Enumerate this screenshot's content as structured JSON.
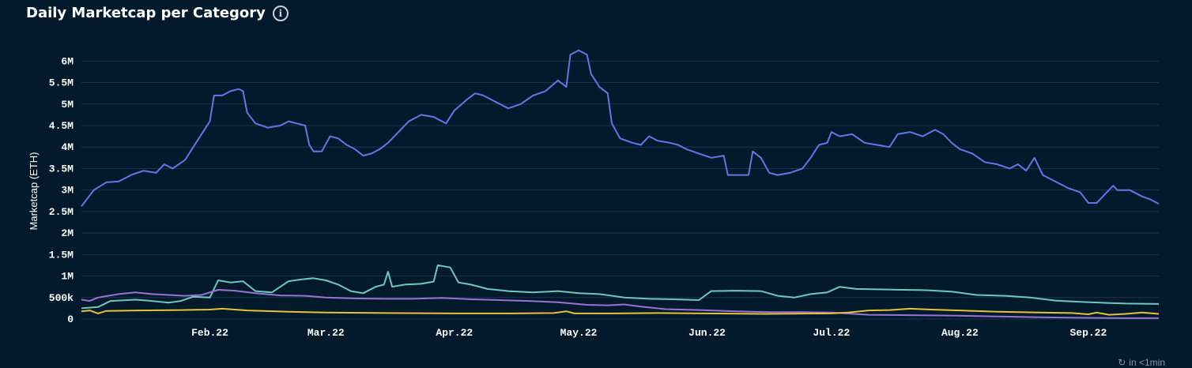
{
  "header": {
    "title": "Daily Marketcap per Category",
    "info_icon": "info-icon"
  },
  "footer": {
    "refresh_icon": "refresh-icon",
    "refresh_text": "in <1min"
  },
  "colors": {
    "background": "#021a2c",
    "grid": "#1b3450",
    "axis_text": "#ffffff",
    "series": [
      "#6476e6",
      "#6fc8bf",
      "#9a72d4",
      "#e6c13a"
    ]
  },
  "chart_data": {
    "type": "line",
    "title": "Daily Marketcap per Category",
    "ylabel": "Marketcap (ETH)",
    "xlabel": "",
    "xlim": [
      "2022-01-01",
      "2022-09-18"
    ],
    "ylim": [
      0,
      6300000
    ],
    "yticks": [
      0,
      500000,
      1000000,
      1500000,
      2000000,
      2500000,
      3000000,
      3500000,
      4000000,
      4500000,
      5000000,
      5500000,
      6000000
    ],
    "ytick_labels": [
      "0",
      "500k",
      "1M",
      "1.5M",
      "2M",
      "2.5M",
      "3M",
      "3.5M",
      "4M",
      "4.5M",
      "5M",
      "5.5M",
      "6M"
    ],
    "xticks": [
      "2022-02-01",
      "2022-03-01",
      "2022-04-01",
      "2022-05-01",
      "2022-06-01",
      "2022-07-01",
      "2022-08-01",
      "2022-09-01"
    ],
    "xtick_labels": [
      "Feb.22",
      "Mar.22",
      "Apr.22",
      "May.22",
      "Jun.22",
      "Jul.22",
      "Aug.22",
      "Sep.22"
    ],
    "grid": true,
    "legend": "none",
    "series": [
      {
        "color": "#6476e6",
        "points": [
          [
            "2022-01-01",
            2620000
          ],
          [
            "2022-01-04",
            3000000
          ],
          [
            "2022-01-07",
            3180000
          ],
          [
            "2022-01-10",
            3200000
          ],
          [
            "2022-01-13",
            3350000
          ],
          [
            "2022-01-16",
            3450000
          ],
          [
            "2022-01-19",
            3400000
          ],
          [
            "2022-01-21",
            3600000
          ],
          [
            "2022-01-23",
            3500000
          ],
          [
            "2022-01-26",
            3700000
          ],
          [
            "2022-01-28",
            4000000
          ],
          [
            "2022-01-30",
            4300000
          ],
          [
            "2022-02-01",
            4600000
          ],
          [
            "2022-02-02",
            5200000
          ],
          [
            "2022-02-04",
            5200000
          ],
          [
            "2022-02-06",
            5300000
          ],
          [
            "2022-02-08",
            5350000
          ],
          [
            "2022-02-09",
            5300000
          ],
          [
            "2022-02-10",
            4800000
          ],
          [
            "2022-02-12",
            4550000
          ],
          [
            "2022-02-15",
            4450000
          ],
          [
            "2022-02-18",
            4500000
          ],
          [
            "2022-02-20",
            4600000
          ],
          [
            "2022-02-22",
            4550000
          ],
          [
            "2022-02-24",
            4500000
          ],
          [
            "2022-02-25",
            4050000
          ],
          [
            "2022-02-26",
            3900000
          ],
          [
            "2022-02-28",
            3900000
          ],
          [
            "2022-03-02",
            4250000
          ],
          [
            "2022-03-04",
            4200000
          ],
          [
            "2022-03-06",
            4050000
          ],
          [
            "2022-03-08",
            3950000
          ],
          [
            "2022-03-10",
            3800000
          ],
          [
            "2022-03-12",
            3850000
          ],
          [
            "2022-03-14",
            3950000
          ],
          [
            "2022-03-16",
            4100000
          ],
          [
            "2022-03-18",
            4300000
          ],
          [
            "2022-03-21",
            4600000
          ],
          [
            "2022-03-24",
            4750000
          ],
          [
            "2022-03-27",
            4700000
          ],
          [
            "2022-03-30",
            4550000
          ],
          [
            "2022-04-01",
            4850000
          ],
          [
            "2022-04-04",
            5100000
          ],
          [
            "2022-04-06",
            5250000
          ],
          [
            "2022-04-08",
            5200000
          ],
          [
            "2022-04-11",
            5050000
          ],
          [
            "2022-04-14",
            4900000
          ],
          [
            "2022-04-17",
            5000000
          ],
          [
            "2022-04-20",
            5200000
          ],
          [
            "2022-04-23",
            5300000
          ],
          [
            "2022-04-26",
            5550000
          ],
          [
            "2022-04-28",
            5400000
          ],
          [
            "2022-04-29",
            6150000
          ],
          [
            "2022-05-01",
            6250000
          ],
          [
            "2022-05-03",
            6150000
          ],
          [
            "2022-05-04",
            5700000
          ],
          [
            "2022-05-06",
            5400000
          ],
          [
            "2022-05-08",
            5250000
          ],
          [
            "2022-05-09",
            4550000
          ],
          [
            "2022-05-11",
            4200000
          ],
          [
            "2022-05-14",
            4100000
          ],
          [
            "2022-05-16",
            4050000
          ],
          [
            "2022-05-18",
            4250000
          ],
          [
            "2022-05-20",
            4150000
          ],
          [
            "2022-05-23",
            4100000
          ],
          [
            "2022-05-25",
            4050000
          ],
          [
            "2022-05-27",
            3950000
          ],
          [
            "2022-05-30",
            3850000
          ],
          [
            "2022-06-02",
            3750000
          ],
          [
            "2022-06-05",
            3800000
          ],
          [
            "2022-06-06",
            3350000
          ],
          [
            "2022-06-09",
            3350000
          ],
          [
            "2022-06-11",
            3350000
          ],
          [
            "2022-06-12",
            3900000
          ],
          [
            "2022-06-14",
            3750000
          ],
          [
            "2022-06-16",
            3400000
          ],
          [
            "2022-06-18",
            3350000
          ],
          [
            "2022-06-21",
            3400000
          ],
          [
            "2022-06-24",
            3500000
          ],
          [
            "2022-06-26",
            3750000
          ],
          [
            "2022-06-28",
            4050000
          ],
          [
            "2022-06-30",
            4100000
          ],
          [
            "2022-07-01",
            4350000
          ],
          [
            "2022-07-03",
            4250000
          ],
          [
            "2022-07-06",
            4300000
          ],
          [
            "2022-07-09",
            4100000
          ],
          [
            "2022-07-12",
            4050000
          ],
          [
            "2022-07-15",
            4000000
          ],
          [
            "2022-07-17",
            4300000
          ],
          [
            "2022-07-20",
            4350000
          ],
          [
            "2022-07-23",
            4250000
          ],
          [
            "2022-07-26",
            4400000
          ],
          [
            "2022-07-28",
            4300000
          ],
          [
            "2022-07-30",
            4100000
          ],
          [
            "2022-08-01",
            3950000
          ],
          [
            "2022-08-04",
            3850000
          ],
          [
            "2022-08-07",
            3650000
          ],
          [
            "2022-08-10",
            3600000
          ],
          [
            "2022-08-13",
            3500000
          ],
          [
            "2022-08-15",
            3600000
          ],
          [
            "2022-08-17",
            3450000
          ],
          [
            "2022-08-19",
            3750000
          ],
          [
            "2022-08-21",
            3350000
          ],
          [
            "2022-08-24",
            3200000
          ],
          [
            "2022-08-27",
            3050000
          ],
          [
            "2022-08-30",
            2950000
          ],
          [
            "2022-09-01",
            2700000
          ],
          [
            "2022-09-03",
            2700000
          ],
          [
            "2022-09-05",
            2900000
          ],
          [
            "2022-09-07",
            3100000
          ],
          [
            "2022-09-08",
            3000000
          ],
          [
            "2022-09-11",
            3000000
          ],
          [
            "2022-09-14",
            2850000
          ],
          [
            "2022-09-16",
            2780000
          ],
          [
            "2022-09-18",
            2680000
          ]
        ]
      },
      {
        "color": "#6fc8bf",
        "points": [
          [
            "2022-01-01",
            250000
          ],
          [
            "2022-01-05",
            280000
          ],
          [
            "2022-01-08",
            420000
          ],
          [
            "2022-01-14",
            450000
          ],
          [
            "2022-01-17",
            430000
          ],
          [
            "2022-01-22",
            380000
          ],
          [
            "2022-01-25",
            420000
          ],
          [
            "2022-01-28",
            520000
          ],
          [
            "2022-02-01",
            500000
          ],
          [
            "2022-02-03",
            900000
          ],
          [
            "2022-02-06",
            850000
          ],
          [
            "2022-02-09",
            880000
          ],
          [
            "2022-02-12",
            650000
          ],
          [
            "2022-02-16",
            620000
          ],
          [
            "2022-02-20",
            880000
          ],
          [
            "2022-02-23",
            920000
          ],
          [
            "2022-02-26",
            950000
          ],
          [
            "2022-03-01",
            900000
          ],
          [
            "2022-03-04",
            800000
          ],
          [
            "2022-03-07",
            650000
          ],
          [
            "2022-03-10",
            600000
          ],
          [
            "2022-03-13",
            750000
          ],
          [
            "2022-03-15",
            800000
          ],
          [
            "2022-03-16",
            1100000
          ],
          [
            "2022-03-17",
            750000
          ],
          [
            "2022-03-20",
            800000
          ],
          [
            "2022-03-24",
            820000
          ],
          [
            "2022-03-27",
            870000
          ],
          [
            "2022-03-28",
            1250000
          ],
          [
            "2022-03-31",
            1200000
          ],
          [
            "2022-04-02",
            850000
          ],
          [
            "2022-04-05",
            800000
          ],
          [
            "2022-04-09",
            700000
          ],
          [
            "2022-04-14",
            650000
          ],
          [
            "2022-04-20",
            620000
          ],
          [
            "2022-04-26",
            650000
          ],
          [
            "2022-05-01",
            600000
          ],
          [
            "2022-05-06",
            580000
          ],
          [
            "2022-05-12",
            500000
          ],
          [
            "2022-05-18",
            470000
          ],
          [
            "2022-05-24",
            460000
          ],
          [
            "2022-05-30",
            440000
          ],
          [
            "2022-06-02",
            650000
          ],
          [
            "2022-06-08",
            660000
          ],
          [
            "2022-06-14",
            650000
          ],
          [
            "2022-06-18",
            540000
          ],
          [
            "2022-06-22",
            500000
          ],
          [
            "2022-06-26",
            580000
          ],
          [
            "2022-06-30",
            620000
          ],
          [
            "2022-07-03",
            750000
          ],
          [
            "2022-07-07",
            700000
          ],
          [
            "2022-07-12",
            690000
          ],
          [
            "2022-07-18",
            680000
          ],
          [
            "2022-07-24",
            670000
          ],
          [
            "2022-07-30",
            640000
          ],
          [
            "2022-08-05",
            560000
          ],
          [
            "2022-08-12",
            540000
          ],
          [
            "2022-08-18",
            500000
          ],
          [
            "2022-08-24",
            430000
          ],
          [
            "2022-08-30",
            400000
          ],
          [
            "2022-09-04",
            380000
          ],
          [
            "2022-09-10",
            360000
          ],
          [
            "2022-09-18",
            350000
          ]
        ]
      },
      {
        "color": "#9a72d4",
        "points": [
          [
            "2022-01-01",
            450000
          ],
          [
            "2022-01-03",
            420000
          ],
          [
            "2022-01-05",
            500000
          ],
          [
            "2022-01-10",
            580000
          ],
          [
            "2022-01-14",
            620000
          ],
          [
            "2022-01-18",
            580000
          ],
          [
            "2022-01-22",
            560000
          ],
          [
            "2022-01-26",
            540000
          ],
          [
            "2022-01-30",
            560000
          ],
          [
            "2022-02-03",
            680000
          ],
          [
            "2022-02-07",
            660000
          ],
          [
            "2022-02-12",
            600000
          ],
          [
            "2022-02-18",
            550000
          ],
          [
            "2022-02-24",
            540000
          ],
          [
            "2022-03-01",
            500000
          ],
          [
            "2022-03-08",
            480000
          ],
          [
            "2022-03-15",
            470000
          ],
          [
            "2022-03-22",
            470000
          ],
          [
            "2022-03-29",
            490000
          ],
          [
            "2022-04-05",
            460000
          ],
          [
            "2022-04-12",
            440000
          ],
          [
            "2022-04-19",
            420000
          ],
          [
            "2022-04-26",
            390000
          ],
          [
            "2022-05-03",
            330000
          ],
          [
            "2022-05-08",
            320000
          ],
          [
            "2022-05-12",
            340000
          ],
          [
            "2022-05-16",
            290000
          ],
          [
            "2022-05-22",
            230000
          ],
          [
            "2022-05-30",
            210000
          ],
          [
            "2022-06-08",
            180000
          ],
          [
            "2022-06-16",
            160000
          ],
          [
            "2022-06-24",
            160000
          ],
          [
            "2022-07-01",
            150000
          ],
          [
            "2022-07-10",
            100000
          ],
          [
            "2022-07-20",
            90000
          ],
          [
            "2022-07-30",
            80000
          ],
          [
            "2022-08-10",
            60000
          ],
          [
            "2022-08-20",
            40000
          ],
          [
            "2022-08-30",
            30000
          ],
          [
            "2022-09-10",
            20000
          ],
          [
            "2022-09-18",
            20000
          ]
        ]
      },
      {
        "color": "#e6c13a",
        "points": [
          [
            "2022-01-01",
            180000
          ],
          [
            "2022-01-03",
            200000
          ],
          [
            "2022-01-05",
            130000
          ],
          [
            "2022-01-07",
            190000
          ],
          [
            "2022-01-15",
            200000
          ],
          [
            "2022-01-25",
            210000
          ],
          [
            "2022-02-01",
            220000
          ],
          [
            "2022-02-04",
            240000
          ],
          [
            "2022-02-10",
            200000
          ],
          [
            "2022-02-20",
            170000
          ],
          [
            "2022-03-01",
            150000
          ],
          [
            "2022-03-15",
            140000
          ],
          [
            "2022-04-01",
            130000
          ],
          [
            "2022-04-15",
            130000
          ],
          [
            "2022-04-25",
            140000
          ],
          [
            "2022-04-28",
            180000
          ],
          [
            "2022-04-30",
            130000
          ],
          [
            "2022-05-10",
            130000
          ],
          [
            "2022-05-20",
            140000
          ],
          [
            "2022-06-01",
            130000
          ],
          [
            "2022-06-15",
            120000
          ],
          [
            "2022-07-01",
            130000
          ],
          [
            "2022-07-05",
            150000
          ],
          [
            "2022-07-10",
            200000
          ],
          [
            "2022-07-15",
            210000
          ],
          [
            "2022-07-20",
            240000
          ],
          [
            "2022-07-25",
            220000
          ],
          [
            "2022-08-01",
            200000
          ],
          [
            "2022-08-10",
            170000
          ],
          [
            "2022-08-20",
            150000
          ],
          [
            "2022-08-28",
            140000
          ],
          [
            "2022-09-01",
            110000
          ],
          [
            "2022-09-03",
            150000
          ],
          [
            "2022-09-06",
            100000
          ],
          [
            "2022-09-10",
            120000
          ],
          [
            "2022-09-14",
            150000
          ],
          [
            "2022-09-18",
            120000
          ]
        ]
      }
    ]
  }
}
